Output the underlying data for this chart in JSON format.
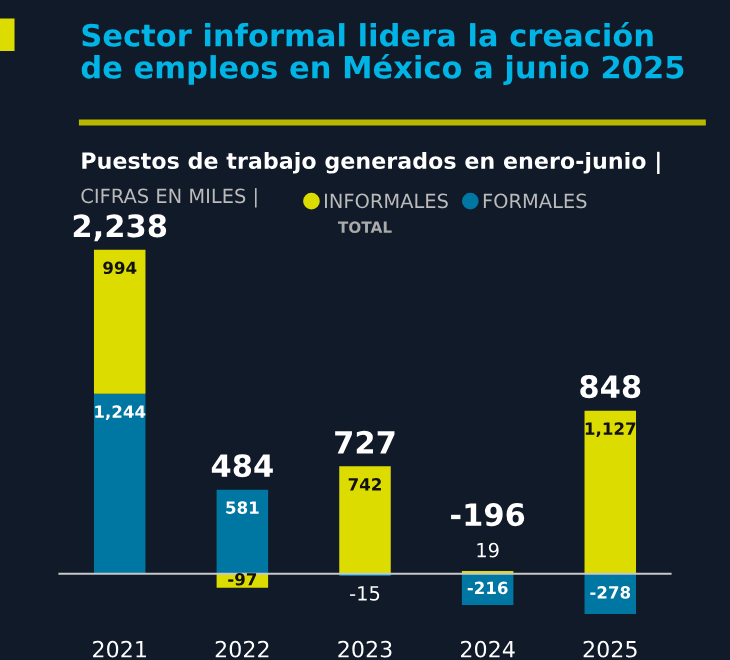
{
  "chart_data": {
    "type": "bar",
    "title": "Sector informal lidera la creación\nde empleos en México a junio 2025",
    "subtitle": "Puestos de trabajo generados en enero-junio |",
    "annotations": [
      "CIFRAS EN MILES |",
      "TOTAL"
    ],
    "categories": [
      "2021",
      "2022",
      "2023",
      "2024",
      "2025"
    ],
    "stacked": true,
    "legend": "top right",
    "series": [
      {
        "name": "FORMALES",
        "color": "#0077a3",
        "values": [
          1244,
          581,
          -15,
          -216,
          -278
        ],
        "value_labels": [
          "1,244",
          "581",
          "-15",
          "-216",
          "-278"
        ]
      },
      {
        "name": "INFORMALES",
        "color": "#dcdc00",
        "values": [
          994,
          -97,
          742,
          19,
          1127
        ],
        "value_labels": [
          "994",
          "-97",
          "742",
          "19",
          "1,127"
        ]
      }
    ],
    "totals": [
      "2,238",
      "484",
      "727",
      "-196",
      "848"
    ]
  }
}
